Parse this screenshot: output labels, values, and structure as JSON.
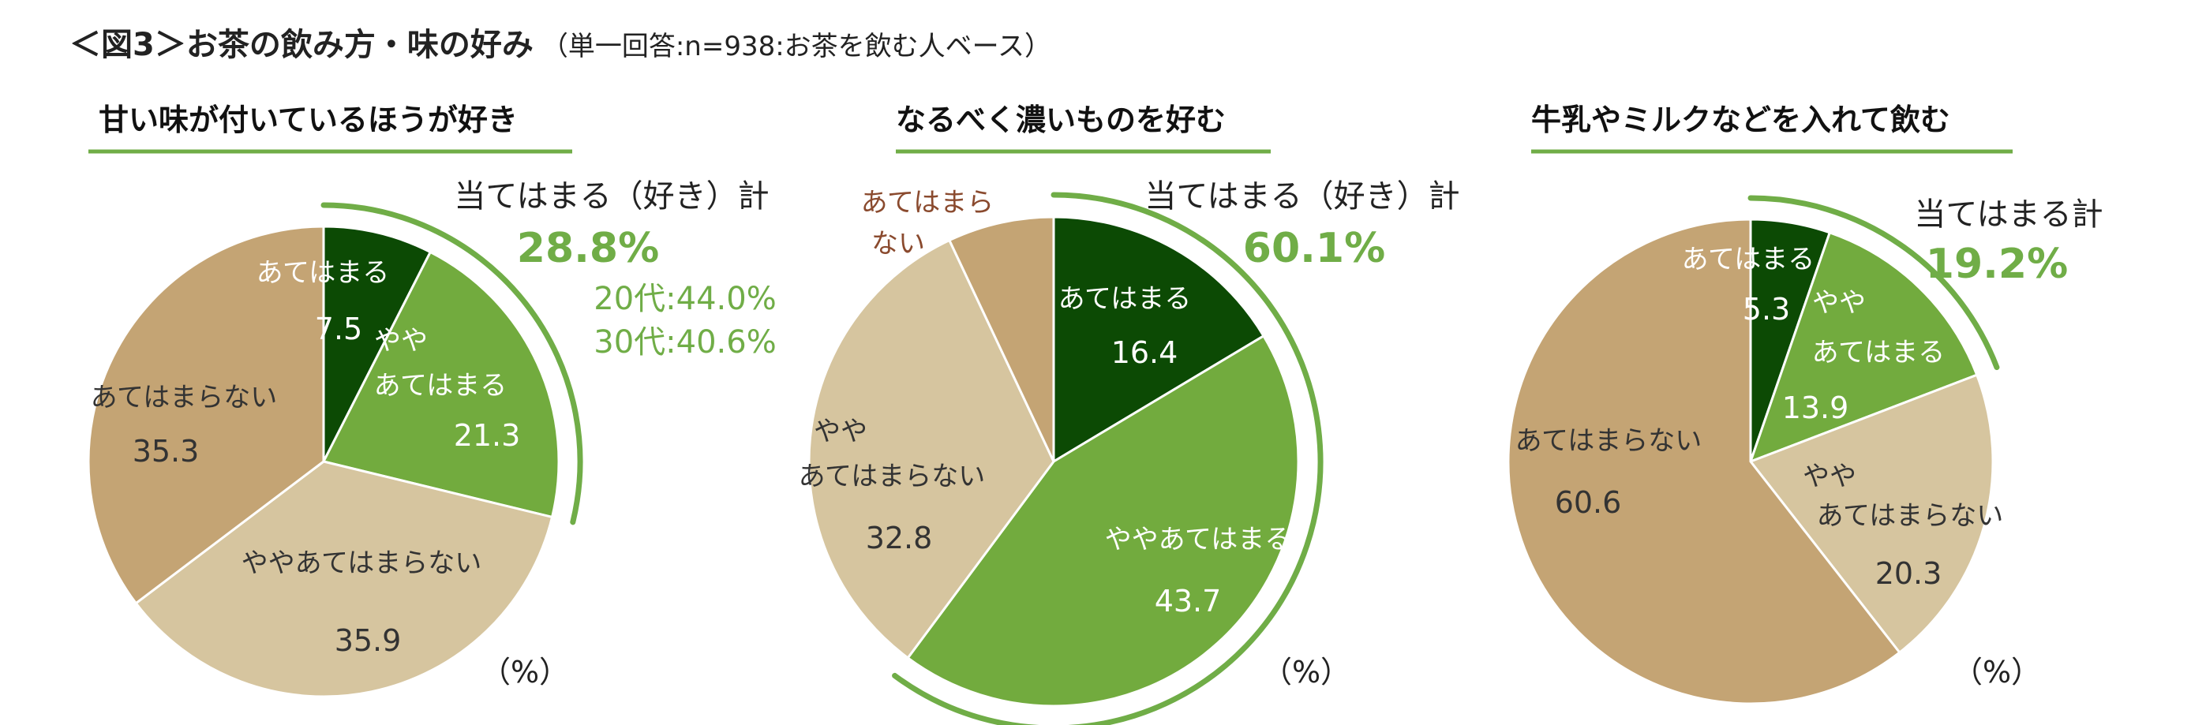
{
  "figure": {
    "title": "＜図3＞お茶の飲み方・味の好み",
    "subtitle": "（単一回答:n=938:お茶を飲む人ベース）"
  },
  "colors": {
    "dark_green": "#0c4a04",
    "green": "#72ab3e",
    "beige_light": "#d6c59f",
    "beige_dark": "#c4a474",
    "accent_green": "#70ad47",
    "brown_text": "#8a4a2e"
  },
  "chart_data": [
    {
      "type": "pie",
      "title": "甘い味が付いているほうが好き",
      "unit_label": "（%）",
      "slices": [
        {
          "label": "あてはまる",
          "value": 7.5
        },
        {
          "label": "やや あてはまる",
          "value": 21.3
        },
        {
          "label": "ややあてはまらない",
          "value": 35.9
        },
        {
          "label": "あてはまらない",
          "value": 35.3
        }
      ],
      "summary": {
        "label": "当てはまる（好き）計",
        "value": "28.8%"
      },
      "extra": [
        "20代:44.0%",
        "30代:40.6%"
      ]
    },
    {
      "type": "pie",
      "title": "なるべく濃いものを好む",
      "unit_label": "（%）",
      "slices": [
        {
          "label": "あてはまる",
          "value": 16.4
        },
        {
          "label": "ややあてはまる",
          "value": 43.7
        },
        {
          "label": "やや あてはまらない",
          "value": 32.8
        },
        {
          "label": "あてはまら ない",
          "value": 7.0
        }
      ],
      "summary": {
        "label": "当てはまる（好き）計",
        "value": "60.1%"
      },
      "extra": []
    },
    {
      "type": "pie",
      "title": "牛乳やミルクなどを入れて飲む",
      "unit_label": "（%）",
      "slices": [
        {
          "label": "あてはまる",
          "value": 5.3
        },
        {
          "label": "やや あてはまる",
          "value": 13.9
        },
        {
          "label": "やや あてはまらない",
          "value": 20.3
        },
        {
          "label": "あてはまらない",
          "value": 60.6
        }
      ],
      "summary": {
        "label": "当てはまる計",
        "value": "19.2%"
      },
      "extra": []
    }
  ]
}
